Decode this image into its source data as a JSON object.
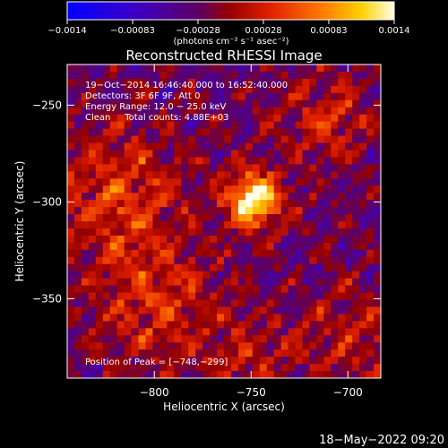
{
  "colorbar": {
    "tick_labels": [
      "−0.0014",
      "−0.00083",
      "−0.00028",
      "0.00028",
      "0.00083",
      "0.0014"
    ],
    "range": [
      -0.0014,
      0.0014
    ],
    "unit_label": "(photons cm⁻² s⁻¹ asec⁻²)"
  },
  "chart_data": {
    "type": "heatmap",
    "title": "Reconstructed RHESSI Image",
    "xlabel": "Heliocentric X (arcsec)",
    "ylabel": "Heliocentric Y (arcsec)",
    "xlim": [
      -845,
      -683
    ],
    "ylim": [
      -391,
      -229
    ],
    "x_ticks": [
      -800,
      -750,
      -700
    ],
    "y_ticks": [
      -250,
      -300,
      -350
    ],
    "x_tick_labels": [
      "−800",
      "−750",
      "−700"
    ],
    "y_tick_labels": [
      "−250",
      "−300",
      "−350"
    ],
    "colormap": "rhessi-flux",
    "peak": {
      "x": -748,
      "y": -299
    },
    "annotations": [
      "19−Oct−2014 16:46:40.000 to 16:52:40.000",
      "Detectors: 3F 6F 9F, Att 0",
      "Energy Range: 12.0 − 25.0 keV",
      "Clean     Total counts: 4.88E+03"
    ],
    "peak_label": "Position of Peak = [−748,−299]"
  },
  "footer": {
    "timestamp": "18−May−2022 09:20"
  }
}
